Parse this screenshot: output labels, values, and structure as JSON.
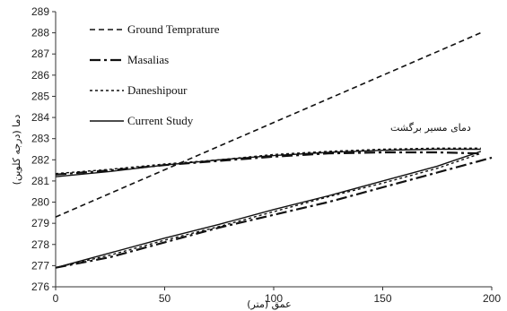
{
  "chart_data": {
    "type": "line",
    "xlabel": "عمق (متر)",
    "ylabel": "دما (درجه کلوین)",
    "xlim": [
      0,
      200
    ],
    "ylim": [
      276,
      289
    ],
    "xticks": [
      0,
      50,
      100,
      150,
      200
    ],
    "yticks": [
      276,
      277,
      278,
      279,
      280,
      281,
      282,
      283,
      284,
      285,
      286,
      287,
      288,
      289
    ],
    "grid": false,
    "legend_position": "top-left",
    "annotation": "دمای مسیر برگشت",
    "series": [
      {
        "name": "Ground Temprature",
        "style": "short-dash",
        "segments": [
          [
            [
              0,
              279.3
            ],
            [
              195,
              288.0
            ]
          ]
        ]
      },
      {
        "name": "Masalias",
        "style": "dash-dot",
        "segments": [
          [
            [
              0,
              276.9
            ],
            [
              25,
              277.4
            ],
            [
              50,
              278.1
            ],
            [
              75,
              278.8
            ],
            [
              100,
              279.4
            ],
            [
              125,
              280.0
            ],
            [
              150,
              280.7
            ],
            [
              175,
              281.4
            ],
            [
              200,
              282.1
            ]
          ],
          [
            [
              0,
              281.3
            ],
            [
              25,
              281.5
            ],
            [
              50,
              281.75
            ],
            [
              75,
              281.95
            ],
            [
              100,
              282.15
            ],
            [
              125,
              282.3
            ],
            [
              150,
              282.35
            ],
            [
              175,
              282.35
            ],
            [
              195,
              282.3
            ]
          ]
        ]
      },
      {
        "name": "Daneshipour",
        "style": "fine-dash",
        "segments": [
          [
            [
              0,
              276.9
            ],
            [
              25,
              277.5
            ],
            [
              50,
              278.2
            ],
            [
              75,
              278.85
            ],
            [
              100,
              279.55
            ],
            [
              125,
              280.25
            ],
            [
              150,
              280.9
            ],
            [
              175,
              281.6
            ],
            [
              195,
              282.3
            ]
          ],
          [
            [
              0,
              281.35
            ],
            [
              25,
              281.55
            ],
            [
              50,
              281.8
            ],
            [
              75,
              282.0
            ],
            [
              100,
              282.25
            ],
            [
              125,
              282.4
            ],
            [
              150,
              282.5
            ],
            [
              175,
              282.55
            ],
            [
              195,
              282.55
            ]
          ]
        ]
      },
      {
        "name": "Current Study",
        "style": "solid",
        "segments": [
          [
            [
              0,
              276.9
            ],
            [
              25,
              277.6
            ],
            [
              50,
              278.3
            ],
            [
              75,
              278.95
            ],
            [
              100,
              279.65
            ],
            [
              125,
              280.3
            ],
            [
              150,
              281.0
            ],
            [
              175,
              281.7
            ],
            [
              195,
              282.4
            ]
          ],
          [
            [
              0,
              281.2
            ],
            [
              25,
              281.45
            ],
            [
              50,
              281.75
            ],
            [
              75,
              282.0
            ],
            [
              100,
              282.2
            ],
            [
              125,
              282.35
            ],
            [
              150,
              282.45
            ],
            [
              175,
              282.5
            ],
            [
              195,
              282.5
            ]
          ]
        ]
      }
    ]
  }
}
